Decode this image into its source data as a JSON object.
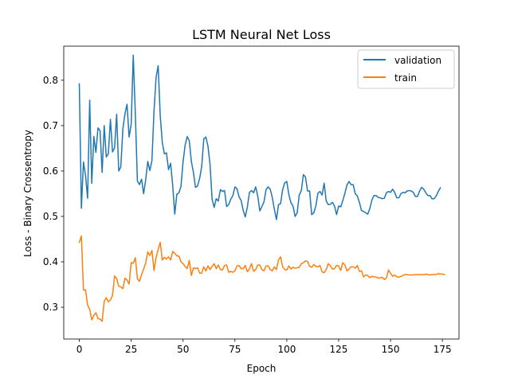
{
  "chart_data": {
    "type": "line",
    "title": "LSTM Neural Net Loss",
    "xlabel": "Epoch",
    "ylabel": "Loss - Binary Crossentropy",
    "xlim": [
      -7.5,
      183
    ],
    "ylim": [
      0.23,
      0.875
    ],
    "xticks": [
      0,
      25,
      50,
      75,
      100,
      125,
      150,
      175
    ],
    "yticks": [
      0.3,
      0.4,
      0.5,
      0.6,
      0.7,
      0.8
    ],
    "ytick_labels": [
      "0.3",
      "0.4",
      "0.5",
      "0.6",
      "0.7",
      "0.8"
    ],
    "grid": false,
    "legend_position": "top-right",
    "series": [
      {
        "name": "validation",
        "color": "#1f77b4",
        "values": [
          0.792,
          0.518,
          0.62,
          0.59,
          0.54,
          0.756,
          0.573,
          0.676,
          0.641,
          0.695,
          0.689,
          0.597,
          0.7,
          0.631,
          0.638,
          0.714,
          0.642,
          0.651,
          0.725,
          0.6,
          0.609,
          0.693,
          0.726,
          0.747,
          0.675,
          0.703,
          0.855,
          0.726,
          0.578,
          0.57,
          0.582,
          0.55,
          0.581,
          0.621,
          0.601,
          0.623,
          0.732,
          0.806,
          0.832,
          0.722,
          0.663,
          0.638,
          0.64,
          0.603,
          0.617,
          0.569,
          0.505,
          0.549,
          0.552,
          0.566,
          0.62,
          0.657,
          0.676,
          0.667,
          0.621,
          0.597,
          0.564,
          0.567,
          0.584,
          0.61,
          0.671,
          0.675,
          0.655,
          0.615,
          0.538,
          0.52,
          0.539,
          0.534,
          0.559,
          0.555,
          0.557,
          0.522,
          0.526,
          0.538,
          0.546,
          0.565,
          0.561,
          0.543,
          0.535,
          0.513,
          0.499,
          0.521,
          0.553,
          0.557,
          0.552,
          0.565,
          0.545,
          0.512,
          0.522,
          0.532,
          0.559,
          0.565,
          0.56,
          0.542,
          0.516,
          0.493,
          0.526,
          0.528,
          0.559,
          0.574,
          0.577,
          0.548,
          0.53,
          0.523,
          0.5,
          0.508,
          0.547,
          0.557,
          0.592,
          0.587,
          0.556,
          0.556,
          0.504,
          0.508,
          0.523,
          0.551,
          0.555,
          0.547,
          0.573,
          0.534,
          0.526,
          0.527,
          0.531,
          0.523,
          0.504,
          0.523,
          0.521,
          0.535,
          0.551,
          0.569,
          0.577,
          0.57,
          0.57,
          0.55,
          0.545,
          0.531,
          0.513,
          0.511,
          0.508,
          0.505,
          0.517,
          0.536,
          0.546,
          0.546,
          0.542,
          0.541,
          0.539,
          0.54,
          0.552,
          0.555,
          0.553,
          0.56,
          0.553,
          0.541,
          0.541,
          0.55,
          0.553,
          0.552,
          0.556,
          0.557,
          0.556,
          0.553,
          0.544,
          0.544,
          0.556,
          0.564,
          0.56,
          0.552,
          0.546,
          0.546,
          0.539,
          0.539,
          0.545,
          0.555,
          0.563
        ]
      },
      {
        "name": "train",
        "color": "#ff7f0e",
        "values": [
          0.443,
          0.457,
          0.338,
          0.338,
          0.305,
          0.295,
          0.272,
          0.282,
          0.288,
          0.275,
          0.274,
          0.269,
          0.313,
          0.321,
          0.312,
          0.316,
          0.326,
          0.369,
          0.363,
          0.346,
          0.345,
          0.341,
          0.364,
          0.36,
          0.351,
          0.398,
          0.397,
          0.409,
          0.363,
          0.357,
          0.372,
          0.384,
          0.398,
          0.422,
          0.414,
          0.425,
          0.381,
          0.409,
          0.427,
          0.443,
          0.404,
          0.41,
          0.406,
          0.411,
          0.404,
          0.423,
          0.419,
          0.413,
          0.413,
          0.4,
          0.396,
          0.39,
          0.385,
          0.403,
          0.37,
          0.387,
          0.385,
          0.387,
          0.375,
          0.375,
          0.389,
          0.38,
          0.391,
          0.383,
          0.39,
          0.396,
          0.385,
          0.393,
          0.383,
          0.382,
          0.392,
          0.393,
          0.377,
          0.379,
          0.377,
          0.38,
          0.391,
          0.392,
          0.385,
          0.385,
          0.392,
          0.378,
          0.385,
          0.396,
          0.379,
          0.383,
          0.393,
          0.393,
          0.383,
          0.38,
          0.391,
          0.391,
          0.383,
          0.38,
          0.389,
          0.383,
          0.404,
          0.411,
          0.389,
          0.383,
          0.382,
          0.391,
          0.384,
          0.388,
          0.386,
          0.387,
          0.388,
          0.396,
          0.398,
          0.402,
          0.401,
          0.39,
          0.388,
          0.394,
          0.39,
          0.389,
          0.392,
          0.378,
          0.376,
          0.383,
          0.396,
          0.391,
          0.384,
          0.385,
          0.392,
          0.391,
          0.381,
          0.398,
          0.393,
          0.38,
          0.384,
          0.389,
          0.389,
          0.386,
          0.392,
          0.379,
          0.38,
          0.367,
          0.371,
          0.37,
          0.365,
          0.368,
          0.367,
          0.367,
          0.364,
          0.365,
          0.366,
          0.361,
          0.364,
          0.382,
          0.375,
          0.368,
          0.371,
          0.367,
          0.366,
          0.368,
          0.37,
          0.372,
          0.372,
          0.371,
          0.371,
          0.371,
          0.372,
          0.372,
          0.372,
          0.372,
          0.372,
          0.373,
          0.372,
          0.371,
          0.372,
          0.372,
          0.372,
          0.374,
          0.373,
          0.373,
          0.372
        ]
      }
    ]
  },
  "colors": {
    "axes_spine": "#000000",
    "background": "#ffffff",
    "legend_border": "#cccccc"
  }
}
